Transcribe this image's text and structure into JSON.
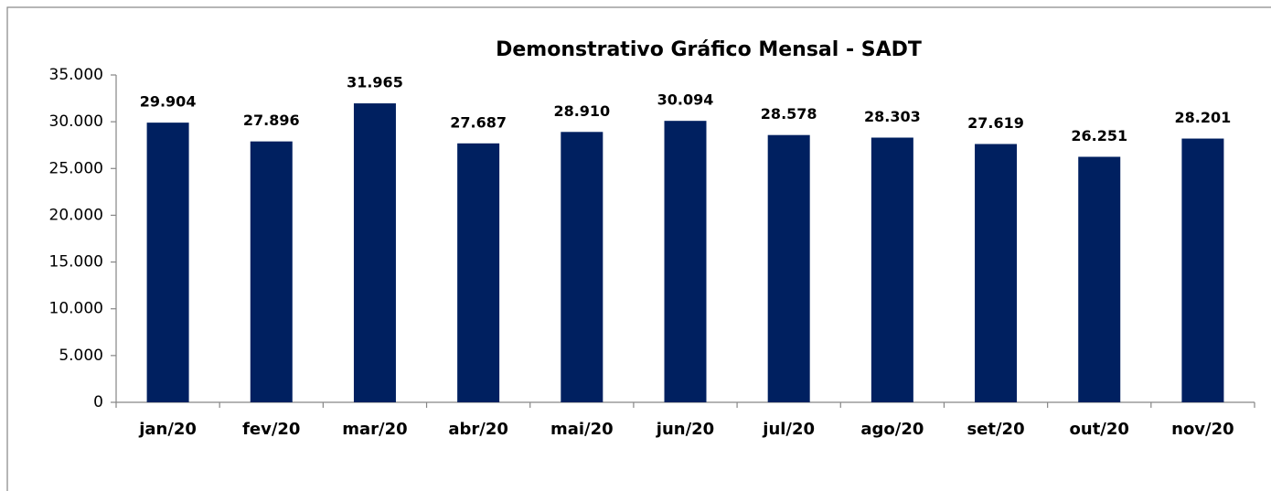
{
  "chart_data": {
    "type": "bar",
    "title": "Demonstrativo Gráfico Mensal - SADT",
    "categories": [
      "jan/20",
      "fev/20",
      "mar/20",
      "abr/20",
      "mai/20",
      "jun/20",
      "jul/20",
      "ago/20",
      "set/20",
      "out/20",
      "nov/20"
    ],
    "values": [
      29904,
      27896,
      31965,
      27687,
      28910,
      30094,
      28578,
      28303,
      27619,
      26251,
      28201
    ],
    "value_labels": [
      "29.904",
      "27.896",
      "31.965",
      "27.687",
      "28.910",
      "30.094",
      "28.578",
      "28.303",
      "27.619",
      "26.251",
      "28.201"
    ],
    "color": "#002060",
    "ylim": [
      0,
      35000
    ],
    "yticks": [
      0,
      {
        "value": 5000,
        "label": "5.000"
      },
      {
        "value": 10000,
        "label": "10.000"
      },
      {
        "value": 15000,
        "label": "15.000"
      },
      {
        "value": 20000,
        "label": "20.000"
      },
      {
        "value": 25000,
        "label": "25.000"
      },
      {
        "value": 30000,
        "label": "30.000"
      },
      {
        "value": 35000,
        "label": "35.000"
      }
    ],
    "grid": false
  }
}
